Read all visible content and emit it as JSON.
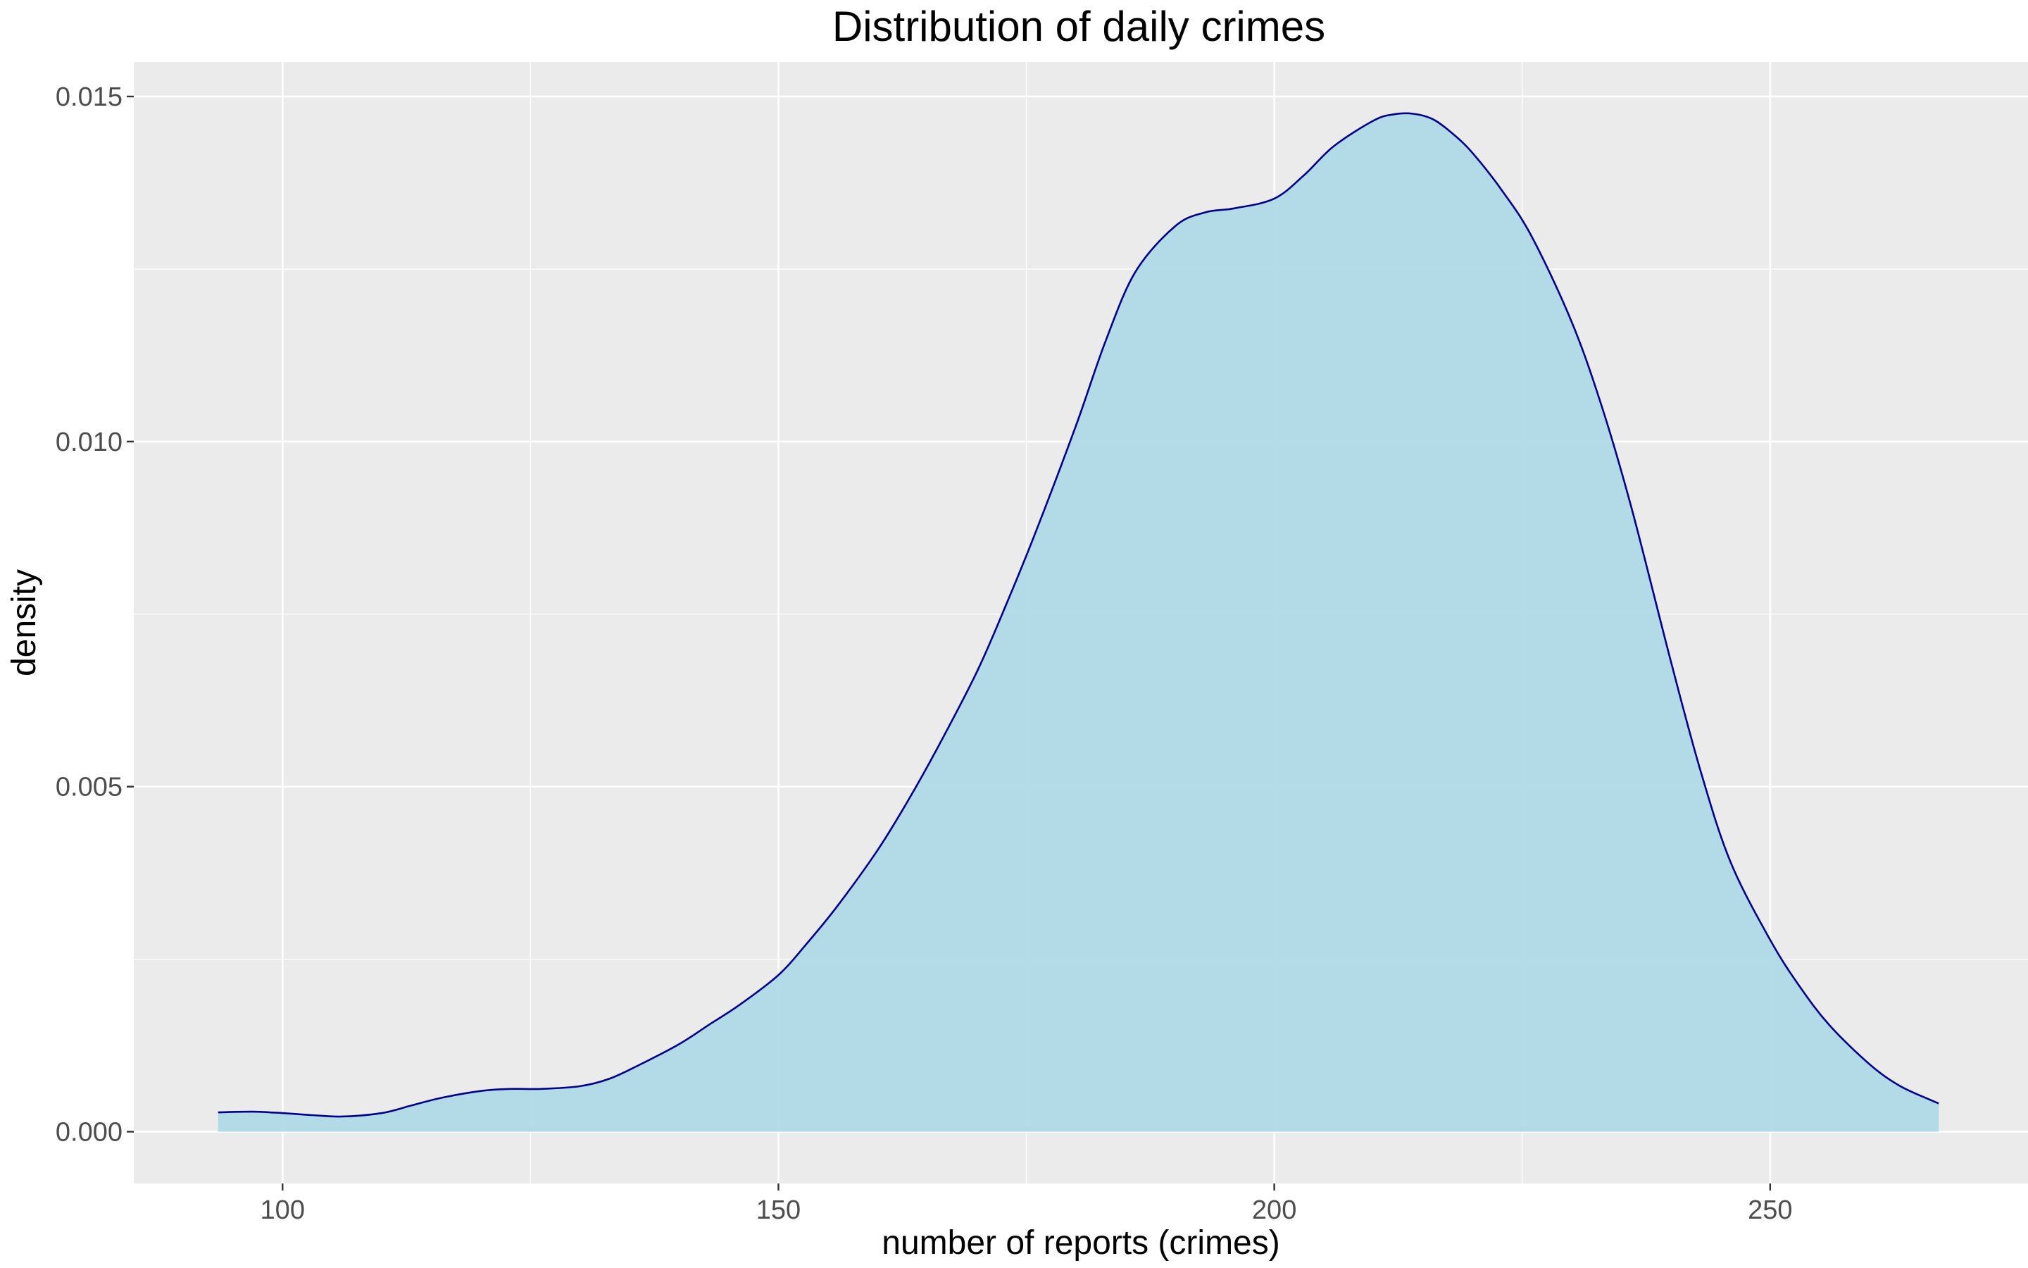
{
  "chart_data": {
    "type": "area",
    "title": "Distribution of daily crimes",
    "xlabel": "number of reports (crimes)",
    "ylabel": "density",
    "xlim": [
      85,
      276
    ],
    "ylim": [
      -0.00075,
      0.0155
    ],
    "x_ticks": [
      100,
      150,
      200,
      250
    ],
    "x_tick_labels": [
      "100",
      "150",
      "200",
      "250"
    ],
    "y_ticks": [
      0.0,
      0.005,
      0.01,
      0.015
    ],
    "y_tick_labels": [
      "0.000",
      "0.005",
      "0.010",
      "0.015"
    ],
    "grid": true,
    "legend": "none",
    "colors": {
      "panel": "#ebebeb",
      "grid": "#ffffff",
      "fill": "#add8e6",
      "line": "#00008b",
      "tick_text": "#4d4d4d",
      "tick": "#333333"
    },
    "series": [
      {
        "x": [
          93.5,
          97,
          100,
          103,
          106,
          110,
          113,
          116,
          120,
          123,
          126,
          130,
          133,
          136,
          140,
          143,
          146,
          150,
          153,
          156,
          160,
          163,
          166,
          170,
          173,
          176,
          180,
          183,
          186,
          190,
          193,
          196,
          200,
          203,
          206,
          210,
          212,
          214,
          216,
          218,
          220,
          223,
          226,
          230,
          233,
          236,
          240,
          243,
          246,
          250,
          253,
          256,
          260,
          263,
          266,
          267
        ],
        "y": [
          0.00028,
          0.00029,
          0.00027,
          0.00024,
          0.00022,
          0.00027,
          0.00038,
          0.00049,
          0.00059,
          0.00062,
          0.00062,
          0.00066,
          0.00077,
          0.00097,
          0.00127,
          0.00155,
          0.00183,
          0.00227,
          0.00275,
          0.00328,
          0.00408,
          0.00478,
          0.00555,
          0.00666,
          0.00765,
          0.00871,
          0.01023,
          0.01146,
          0.01246,
          0.01312,
          0.01332,
          0.01338,
          0.01352,
          0.01386,
          0.01428,
          0.01465,
          0.01474,
          0.01475,
          0.01467,
          0.01446,
          0.01418,
          0.01363,
          0.01296,
          0.01173,
          0.01052,
          0.00905,
          0.00681,
          0.00522,
          0.00391,
          0.00278,
          0.0021,
          0.00154,
          0.00098,
          0.00067,
          0.00047,
          0.00041
        ]
      }
    ]
  }
}
